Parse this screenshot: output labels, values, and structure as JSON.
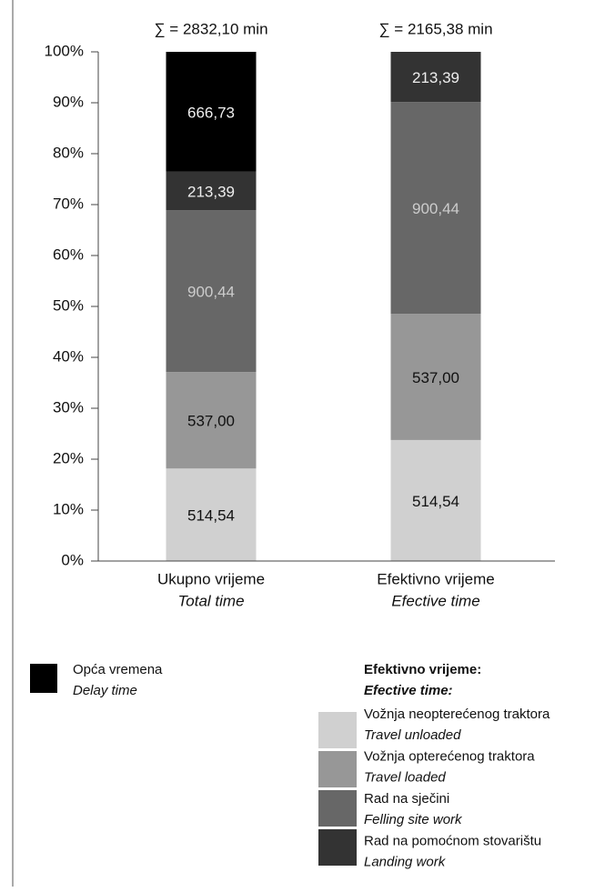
{
  "chart_data": {
    "type": "bar",
    "stacking": "percent",
    "annotations": [
      "∑ = 2832,10 min",
      "∑ = 2165,38 min"
    ],
    "categories": [
      "Ukupno vrijeme",
      "Efektivno vrijeme"
    ],
    "category_subtitles": [
      "Total time",
      "Efective time"
    ],
    "ylim": [
      0,
      100
    ],
    "yticks": [
      {
        "value": 0,
        "label": "0%"
      },
      {
        "value": 10,
        "label": "10%"
      },
      {
        "value": 20,
        "label": "20%"
      },
      {
        "value": 30,
        "label": "30%"
      },
      {
        "value": 40,
        "label": "40%"
      },
      {
        "value": 50,
        "label": "50%"
      },
      {
        "value": 60,
        "label": "60%"
      },
      {
        "value": 70,
        "label": "70%"
      },
      {
        "value": 80,
        "label": "80%"
      },
      {
        "value": 90,
        "label": "90%"
      },
      {
        "value": 100,
        "label": "100%"
      }
    ],
    "legend_title": [
      "Efektivno vrijeme:",
      "Efective time:"
    ],
    "series": [
      {
        "name": "Vožnja neopterećenog traktora",
        "name_en": "Travel unloaded",
        "color": "#d0d0d0",
        "values": [
          514.54,
          514.54
        ],
        "value_labels": [
          "514,54",
          "514,54"
        ]
      },
      {
        "name": "Vožnja opterećenog traktora",
        "name_en": "Travel loaded",
        "color": "#979797",
        "values": [
          537.0,
          537.0
        ],
        "value_labels": [
          "537,00",
          "537,00"
        ]
      },
      {
        "name": "Rad na sječini",
        "name_en": "Felling site work",
        "color": "#676767",
        "values": [
          900.44,
          900.44
        ],
        "value_labels": [
          "900,44",
          "900,44"
        ]
      },
      {
        "name": "Rad na pomoćnom stovarištu",
        "name_en": "Landing work",
        "color": "#333333",
        "values": [
          213.39,
          213.39
        ],
        "value_labels": [
          "213,39",
          "213,39"
        ]
      },
      {
        "name": "Opća vremena",
        "name_en": "Delay time",
        "color": "#000000",
        "values": [
          666.73,
          null
        ],
        "value_labels": [
          "666,73",
          null
        ]
      }
    ]
  }
}
